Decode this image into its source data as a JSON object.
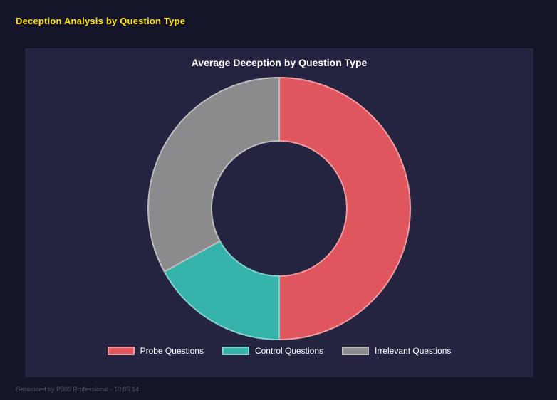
{
  "page": {
    "title": "Deception Analysis by Question Type",
    "footer": "Generated by P300 Professional - 10:05:14"
  },
  "chart_data": {
    "type": "pie",
    "subtype": "donut",
    "title": "Average Deception by Question Type",
    "categories": [
      "Probe Questions",
      "Control Questions",
      "Irrelevant Questions"
    ],
    "values": [
      50,
      17,
      33
    ],
    "unit": "percent (estimated from slice angles, no numeric labels shown)",
    "colors": [
      "#e0565f",
      "#35b3aa",
      "#8b8b8d"
    ],
    "border_colors": [
      "#ef9aa0",
      "#82d2cb",
      "#bdbdc0"
    ],
    "start_angle_deg": 0,
    "legend_position": "bottom",
    "background": "#242440"
  }
}
